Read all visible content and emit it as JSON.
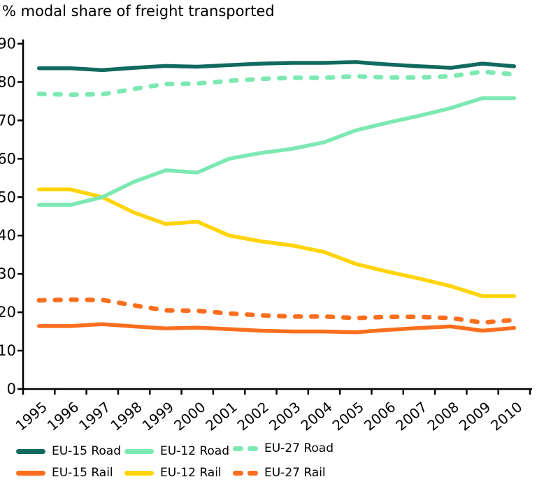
{
  "chart_data": {
    "type": "line",
    "title": "% modal share of freight transported",
    "x": [
      "1995",
      "1996",
      "1997",
      "1998",
      "1999",
      "2000",
      "2001",
      "2002",
      "2003",
      "2004",
      "2005",
      "2006",
      "2007",
      "2008",
      "2009",
      "2010"
    ],
    "xlabel": "",
    "ylabel": "",
    "ylim": [
      0,
      90
    ],
    "yticks": [
      0,
      10,
      20,
      30,
      40,
      50,
      60,
      70,
      80,
      90
    ],
    "grid": false,
    "axis_color": "#000000",
    "text_color": "#000000",
    "background_color": "#ffffff",
    "legend_position": "bottom",
    "series": [
      {
        "name": "EU-15 Road",
        "color": "#116a5f",
        "style": "solid",
        "values": [
          83.6,
          83.6,
          83.1,
          83.7,
          84.2,
          84.0,
          84.4,
          84.8,
          85.0,
          85.0,
          85.2,
          84.6,
          84.1,
          83.7,
          84.8,
          84.1
        ]
      },
      {
        "name": "EU-12 Road",
        "color": "#7de9b2",
        "style": "solid",
        "values": [
          48.0,
          48.0,
          50.0,
          54.0,
          57.0,
          56.4,
          60.0,
          61.5,
          62.6,
          64.3,
          67.4,
          69.4,
          71.2,
          73.2,
          75.8,
          75.8
        ]
      },
      {
        "name": "EU-27 Road",
        "color": "#7de9b2",
        "style": "dashed",
        "values": [
          76.9,
          76.7,
          76.8,
          78.2,
          79.5,
          79.6,
          80.3,
          80.8,
          81.1,
          81.1,
          81.5,
          81.2,
          81.2,
          81.5,
          82.7,
          82.0
        ]
      },
      {
        "name": "EU-15 Rail",
        "color": "#fa6e1e",
        "style": "solid",
        "values": [
          16.4,
          16.4,
          16.9,
          16.3,
          15.8,
          16.0,
          15.6,
          15.2,
          15.0,
          15.0,
          14.8,
          15.4,
          15.9,
          16.3,
          15.2,
          15.9
        ]
      },
      {
        "name": "EU-12 Rail",
        "color": "#ffd40a",
        "style": "solid",
        "values": [
          52.0,
          52.0,
          50.0,
          46.0,
          43.0,
          43.6,
          40.0,
          38.5,
          37.4,
          35.7,
          32.6,
          30.6,
          28.8,
          26.8,
          24.2,
          24.2
        ]
      },
      {
        "name": "EU-27 Rail",
        "color": "#fa6e1e",
        "style": "dashed",
        "values": [
          23.1,
          23.3,
          23.2,
          21.8,
          20.5,
          20.4,
          19.7,
          19.2,
          18.9,
          18.9,
          18.5,
          18.8,
          18.8,
          18.5,
          17.3,
          18.0
        ]
      }
    ],
    "legend_rows": [
      [
        "EU-15 Road",
        "EU-12 Road",
        "EU-27 Road"
      ],
      [
        "EU-15 Rail",
        "EU-12 Rail",
        "EU-27 Rail"
      ]
    ]
  }
}
